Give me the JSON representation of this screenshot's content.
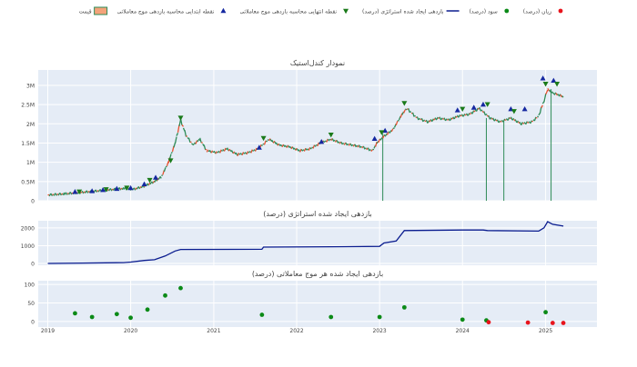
{
  "legend": {
    "items": [
      {
        "key": "loss",
        "label": "زیان (درصد)",
        "color": "#e8141c",
        "symbol": "dot"
      },
      {
        "key": "profit",
        "label": "سود (درصد)",
        "color": "#0b8a17",
        "symbol": "dot"
      },
      {
        "key": "equity",
        "label": "بازدهی ایجاد شده استراتژی (درصد)",
        "color": "#0a1c8f",
        "symbol": "line"
      },
      {
        "key": "exit",
        "label": "نقطه انتهایی محاسبه بازدهی موج معاملاتی",
        "color": "#1a7a1a",
        "symbol": "tri-down"
      },
      {
        "key": "entry",
        "label": "نقطه ابتدایی محاسبه بازدهی موج معاملاتی",
        "color": "#1528a0",
        "symbol": "tri-up"
      },
      {
        "key": "price",
        "label": "قیمت",
        "color": "#2e8b57",
        "symbol": "candle"
      }
    ]
  },
  "colors": {
    "panel_bg": "#e5ecf6",
    "grid": "#ffffff",
    "up": "#2e8b57",
    "down": "#e8502f",
    "equity": "#0a1c8f",
    "profit": "#0b8a17",
    "loss": "#e8141c",
    "entry": "#1528a0",
    "exit": "#1a7a1a",
    "text": "#444444"
  },
  "chart_data": [
    {
      "type": "line",
      "title": "نمودار کندل‌استیک",
      "x_ticks": [
        "2019-01-01",
        "2020-01-01",
        "2021-01-01",
        "2022-01-01",
        "2023-01-01",
        "2024-01-01",
        "2025-01-01"
      ],
      "x_tick_labels": [
        "2019",
        "2020",
        "2021",
        "2022",
        "2023",
        "2024",
        "2025"
      ],
      "xlim": [
        "2018-11-20",
        "2025-08-15"
      ],
      "ylim": [
        0,
        3400000
      ],
      "y_ticks": [
        0,
        500000,
        1000000,
        1500000,
        2000000,
        2500000,
        3000000
      ],
      "y_tick_labels": [
        "0",
        "0.5M",
        "1M",
        "1.5M",
        "2M",
        "2.5M",
        "3M"
      ],
      "series": [
        {
          "name": "قیمت",
          "x": [
            "2019-01-01",
            "2019-03-15",
            "2019-06-01",
            "2019-09-01",
            "2019-12-01",
            "2020-01-15",
            "2020-03-01",
            "2020-04-15",
            "2020-05-15",
            "2020-06-15",
            "2020-07-15",
            "2020-08-08",
            "2020-09-01",
            "2020-10-01",
            "2020-11-01",
            "2020-12-01",
            "2021-01-15",
            "2021-03-01",
            "2021-04-15",
            "2021-06-01",
            "2021-07-15",
            "2021-09-01",
            "2021-10-15",
            "2021-12-01",
            "2022-01-15",
            "2022-03-01",
            "2022-04-15",
            "2022-06-01",
            "2022-07-15",
            "2022-09-01",
            "2022-10-15",
            "2022-12-01",
            "2022-12-20",
            "2023-01-15",
            "2023-03-01",
            "2023-04-10",
            "2023-05-01",
            "2023-06-15",
            "2023-08-01",
            "2023-09-15",
            "2023-11-01",
            "2023-12-15",
            "2024-02-01",
            "2024-03-15",
            "2024-05-01",
            "2024-06-15",
            "2024-08-01",
            "2024-09-15",
            "2024-11-01",
            "2024-12-01",
            "2024-12-25",
            "2025-01-10",
            "2025-02-01",
            "2025-03-01",
            "2025-03-20"
          ],
          "values": [
            150000,
            180000,
            220000,
            270000,
            320000,
            300000,
            380000,
            500000,
            620000,
            1000000,
            1500000,
            2100000,
            1700000,
            1450000,
            1600000,
            1300000,
            1250000,
            1350000,
            1200000,
            1250000,
            1350000,
            1600000,
            1450000,
            1400000,
            1300000,
            1350000,
            1500000,
            1600000,
            1500000,
            1450000,
            1400000,
            1300000,
            1500000,
            1650000,
            1850000,
            2250000,
            2400000,
            2150000,
            2050000,
            2150000,
            2100000,
            2200000,
            2250000,
            2400000,
            2150000,
            2050000,
            2150000,
            2000000,
            2050000,
            2200000,
            2600000,
            2900000,
            2800000,
            2750000,
            2700000
          ]
        }
      ],
      "entry_points": {
        "name": "نقطه ابتدایی محاسبه بازدهی موج معاملاتی",
        "x": [
          "2019-05-01",
          "2019-07-15",
          "2019-09-01",
          "2019-11-01",
          "2020-01-01",
          "2020-03-01",
          "2020-04-20",
          "2021-07-20",
          "2022-04-20",
          "2022-12-10",
          "2023-01-25",
          "2023-12-10",
          "2024-02-20",
          "2024-04-01",
          "2024-08-01",
          "2024-10-01",
          "2024-12-20",
          "2025-02-05"
        ],
        "values": [
          230000,
          250000,
          280000,
          310000,
          330000,
          430000,
          600000,
          1380000,
          1530000,
          1610000,
          1820000,
          2350000,
          2420000,
          2500000,
          2380000,
          2380000,
          3180000,
          3120000
        ]
      },
      "exit_points": {
        "name": "نقطه انتهایی محاسبه بازدهی موج معاملاتی",
        "x": [
          "2019-05-20",
          "2019-09-15",
          "2019-12-15",
          "2020-03-25",
          "2020-06-25",
          "2020-08-08",
          "2021-08-08",
          "2022-06-01",
          "2023-01-10",
          "2023-04-20",
          "2024-01-01",
          "2024-04-20",
          "2024-08-15",
          "2025-01-01",
          "2025-02-20"
        ],
        "values": [
          240000,
          300000,
          340000,
          540000,
          1050000,
          2160000,
          1630000,
          1720000,
          1780000,
          2540000,
          2390000,
          2510000,
          2330000,
          3040000,
          3040000
        ]
      },
      "spikes": {
        "x": [
          "2023-01-15",
          "2024-04-15",
          "2024-07-01",
          "2025-01-25"
        ],
        "values": [
          1750000,
          2150000,
          2050000,
          2900000
        ]
      }
    },
    {
      "type": "line",
      "title": "بازدهی ایجاد شده استراتژی (درصد)",
      "xlim": [
        "2018-11-20",
        "2025-08-15"
      ],
      "ylim": [
        -100,
        2400
      ],
      "y_ticks": [
        0,
        1000,
        2000
      ],
      "y_tick_labels": [
        "0",
        "1000",
        "2000"
      ],
      "series": [
        {
          "name": "بازدهی ایجاد شده استراتژی (درصد)",
          "x": [
            "2019-01-01",
            "2019-06-01",
            "2019-12-01",
            "2020-01-01",
            "2020-03-01",
            "2020-04-15",
            "2020-06-01",
            "2020-07-15",
            "2020-08-08",
            "2021-08-01",
            "2021-08-08",
            "2022-06-01",
            "2023-01-01",
            "2023-01-20",
            "2023-03-15",
            "2023-04-20",
            "2024-01-01",
            "2024-04-01",
            "2024-04-20",
            "2024-12-01",
            "2024-12-25",
            "2025-01-10",
            "2025-02-01",
            "2025-03-20"
          ],
          "values": [
            0,
            20,
            50,
            80,
            170,
            210,
            420,
            700,
            790,
            800,
            920,
            940,
            960,
            1150,
            1260,
            1850,
            1880,
            1880,
            1850,
            1820,
            2000,
            2350,
            2200,
            2100
          ]
        }
      ]
    },
    {
      "type": "scatter",
      "title": "بازدهی ایجاد شده هر موج معاملاتی (درصد)",
      "xlim": [
        "2018-11-20",
        "2025-08-15"
      ],
      "ylim": [
        -15,
        110
      ],
      "y_ticks": [
        0,
        50,
        100
      ],
      "y_tick_labels": [
        "0",
        "50",
        "100"
      ],
      "series": [
        {
          "name": "سود (درصد)",
          "x": [
            "2019-05-01",
            "2019-07-15",
            "2019-11-01",
            "2020-01-01",
            "2020-03-15",
            "2020-06-01",
            "2020-08-08",
            "2021-08-01",
            "2022-06-01",
            "2023-01-01",
            "2023-04-20",
            "2024-01-01",
            "2024-04-15",
            "2025-01-01"
          ],
          "values": [
            22,
            12,
            20,
            10,
            32,
            70,
            90,
            18,
            12,
            12,
            38,
            5,
            3,
            25
          ]
        },
        {
          "name": "زیان (درصد)",
          "x": [
            "2024-04-25",
            "2024-10-15",
            "2025-02-01",
            "2025-03-20"
          ],
          "values": [
            -2,
            -3,
            -4,
            -4
          ]
        }
      ]
    }
  ]
}
